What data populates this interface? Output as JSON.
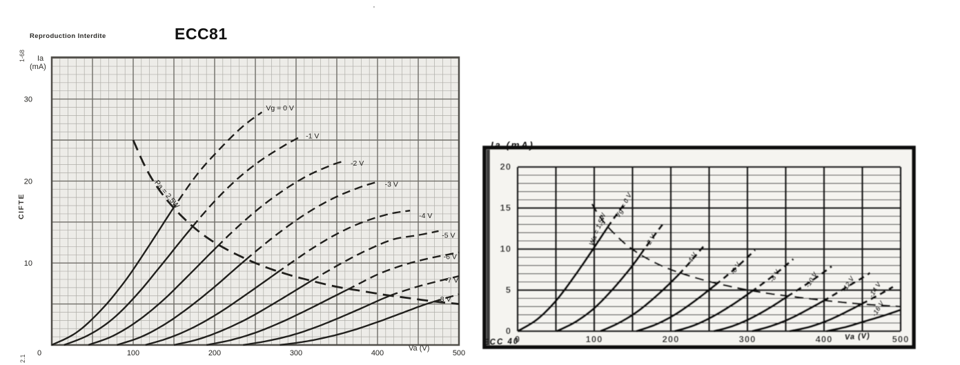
{
  "annotations": {
    "reproduction": "Reproduction Interdite",
    "margin_code_top": "1-68",
    "margin_code_mid": "CIFTE",
    "margin_code_bottom": "2.1",
    "stray_mark": "'"
  },
  "colors": {
    "paper": "#ffffff",
    "left_ink": "#21201d",
    "left_grid_minor": "#aeada7",
    "left_grid_major": "#6f6d67",
    "left_plot_bg": "#edece8",
    "left_border": "#504e49",
    "right_ink": "#0f0f0f",
    "right_plot_bg": "#f5f4f0",
    "right_grid_minor": "#3c3c3c",
    "right_grid_major": "#1c1c1c",
    "right_frame": "#0d0d0d"
  },
  "chart_data": [
    {
      "id": "ecc81",
      "type": "line",
      "title": "ECC81",
      "ylabel": "Ia",
      "ylabel2": "(mA)",
      "xlabel": "Va (V)",
      "xlim": [
        0,
        500
      ],
      "ylim": [
        0,
        35.1
      ],
      "xticks": [
        0,
        100,
        200,
        300,
        400,
        500
      ],
      "yticks": [
        10,
        20,
        30
      ],
      "grid": {
        "minor_x": 10,
        "minor_y": 1,
        "major_x": 50,
        "major_y": 5
      },
      "legend_position": "labels-on-curves",
      "power_curve": {
        "label": "Pa = 2,5W",
        "watts": 2.5,
        "label_at": [
          126,
          19.8
        ],
        "label_rotate": 50,
        "points": [
          [
            100,
            25
          ],
          [
            115,
            21.7
          ],
          [
            130,
            19.2
          ],
          [
            150,
            16.7
          ],
          [
            175,
            14.3
          ],
          [
            200,
            12.5
          ],
          [
            230,
            10.9
          ],
          [
            260,
            9.6
          ],
          [
            290,
            8.6
          ],
          [
            320,
            7.8
          ],
          [
            350,
            7.1
          ],
          [
            380,
            6.6
          ],
          [
            410,
            6.1
          ],
          [
            440,
            5.7
          ],
          [
            470,
            5.3
          ],
          [
            500,
            5
          ]
        ]
      },
      "series": [
        {
          "name": "Vg=0V",
          "label": "Vg = 0 V",
          "label_at": [
            263,
            28.6
          ],
          "label_rotate": 0,
          "points": [
            [
              0,
              0
            ],
            [
              30,
              1.5
            ],
            [
              60,
              4.2
            ],
            [
              90,
              7.8
            ],
            [
              120,
              12.2
            ],
            [
              150,
              16.8
            ],
            [
              180,
              21
            ],
            [
              210,
              24.3
            ],
            [
              235,
              26.7
            ],
            [
              258,
              28.4
            ]
          ]
        },
        {
          "name": "Vg=-1V",
          "label": "-1 V",
          "label_at": [
            312,
            25.2
          ],
          "label_rotate": 0,
          "points": [
            [
              15,
              0
            ],
            [
              45,
              1.2
            ],
            [
              75,
              3.2
            ],
            [
              105,
              6.2
            ],
            [
              135,
              9.8
            ],
            [
              165,
              13.5
            ],
            [
              195,
              17
            ],
            [
              225,
              20
            ],
            [
              255,
              22.4
            ],
            [
              285,
              24.3
            ],
            [
              305,
              25.4
            ]
          ]
        },
        {
          "name": "Vg=-2V",
          "label": "-2 V",
          "label_at": [
            367,
            21.9
          ],
          "label_rotate": 0,
          "points": [
            [
              45,
              0
            ],
            [
              75,
              1.1
            ],
            [
              105,
              2.9
            ],
            [
              135,
              5.3
            ],
            [
              165,
              8.2
            ],
            [
              195,
              11.2
            ],
            [
              225,
              14.1
            ],
            [
              255,
              16.7
            ],
            [
              285,
              18.9
            ],
            [
              315,
              20.7
            ],
            [
              345,
              22
            ],
            [
              358,
              22.4
            ]
          ]
        },
        {
          "name": "Vg=-3V",
          "label": "-3 V",
          "label_at": [
            409,
            19.3
          ],
          "label_rotate": 0,
          "points": [
            [
              80,
              0
            ],
            [
              110,
              1
            ],
            [
              140,
              2.6
            ],
            [
              170,
              4.7
            ],
            [
              200,
              7.1
            ],
            [
              230,
              9.7
            ],
            [
              260,
              12.2
            ],
            [
              290,
              14.5
            ],
            [
              320,
              16.5
            ],
            [
              350,
              18.1
            ],
            [
              380,
              19.3
            ],
            [
              400,
              19.9
            ]
          ]
        },
        {
          "name": "Vg=-4V",
          "label": "-4 V",
          "label_at": [
            451,
            15.5
          ],
          "label_rotate": 0,
          "points": [
            [
              115,
              0
            ],
            [
              145,
              0.9
            ],
            [
              175,
              2.2
            ],
            [
              205,
              3.9
            ],
            [
              235,
              5.9
            ],
            [
              265,
              8
            ],
            [
              295,
              10.1
            ],
            [
              325,
              12.1
            ],
            [
              355,
              13.8
            ],
            [
              385,
              15.1
            ],
            [
              415,
              16
            ],
            [
              440,
              16.4
            ]
          ]
        },
        {
          "name": "Vg=-5V",
          "label": "-5 V",
          "label_at": [
            479,
            13.1
          ],
          "label_rotate": 0,
          "points": [
            [
              150,
              0
            ],
            [
              180,
              0.7
            ],
            [
              210,
              1.8
            ],
            [
              240,
              3.2
            ],
            [
              270,
              4.9
            ],
            [
              300,
              6.7
            ],
            [
              330,
              8.5
            ],
            [
              360,
              10.2
            ],
            [
              390,
              11.7
            ],
            [
              420,
              12.9
            ],
            [
              450,
              13.4
            ],
            [
              475,
              13.9
            ]
          ]
        },
        {
          "name": "Vg=-6V",
          "label": "-6 V",
          "label_at": [
            481,
            10.5
          ],
          "label_rotate": 0,
          "points": [
            [
              190,
              0
            ],
            [
              220,
              0.6
            ],
            [
              250,
              1.5
            ],
            [
              280,
              2.7
            ],
            [
              310,
              4.1
            ],
            [
              340,
              5.6
            ],
            [
              370,
              7.1
            ],
            [
              400,
              8.6
            ],
            [
              430,
              9.7
            ],
            [
              460,
              10.5
            ],
            [
              490,
              11.1
            ],
            [
              500,
              11.3
            ]
          ]
        },
        {
          "name": "Vg=-7V",
          "label": "-7 V",
          "label_at": [
            483,
            7.6
          ],
          "label_rotate": 0,
          "points": [
            [
              235,
              0
            ],
            [
              265,
              0.5
            ],
            [
              295,
              1.2
            ],
            [
              325,
              2.2
            ],
            [
              355,
              3.4
            ],
            [
              385,
              4.7
            ],
            [
              415,
              6
            ],
            [
              445,
              7
            ],
            [
              475,
              7.8
            ],
            [
              500,
              8.4
            ]
          ]
        },
        {
          "name": "Vg=-8V",
          "label": "-8 V",
          "label_at": [
            474,
            5.3
          ],
          "label_rotate": 0,
          "points": [
            [
              280,
              0
            ],
            [
              310,
              0.4
            ],
            [
              340,
              1
            ],
            [
              370,
              1.8
            ],
            [
              400,
              2.8
            ],
            [
              430,
              3.9
            ],
            [
              460,
              5
            ],
            [
              490,
              5.9
            ],
            [
              500,
              6.2
            ]
          ]
        }
      ]
    },
    {
      "id": "ecc40",
      "type": "line",
      "title": "ECC 40",
      "footer": "ECC 40",
      "ylabel": "Ia (mA)",
      "xlabel": "Va (V)",
      "xlim": [
        0,
        500
      ],
      "ylim": [
        0,
        20
      ],
      "xticks": [
        0,
        100,
        200,
        300,
        400,
        500
      ],
      "yticks": [
        0,
        5,
        10,
        15,
        20
      ],
      "grid": {
        "minor_y": 1,
        "major_x": 50,
        "major_y": 5
      },
      "legend_position": "labels-on-curves",
      "power_curve": {
        "label": "Wa = 1,5W",
        "watts": 1.5,
        "label_at": [
          107,
          12.3
        ],
        "label_rotate": -68,
        "points": [
          [
            97,
            15.5
          ],
          [
            110,
            13.6
          ],
          [
            125,
            12
          ],
          [
            145,
            10.3
          ],
          [
            170,
            8.8
          ],
          [
            200,
            7.5
          ],
          [
            240,
            6.3
          ],
          [
            280,
            5.4
          ],
          [
            320,
            4.7
          ],
          [
            360,
            4.2
          ],
          [
            400,
            3.75
          ],
          [
            450,
            3.3
          ],
          [
            500,
            3
          ]
        ]
      },
      "series": [
        {
          "name": "Vg=0V",
          "label": "Vg = 0 V",
          "label_at": [
            141,
            15.2
          ],
          "label_rotate": -62,
          "points": [
            [
              0,
              0
            ],
            [
              25,
              1.4
            ],
            [
              50,
              3.7
            ],
            [
              75,
              6.8
            ],
            [
              100,
              10.2
            ],
            [
              120,
              13
            ],
            [
              140,
              15.6
            ]
          ]
        },
        {
          "name": "Vg=-2V",
          "label": "-2 V",
          "label_at": [
            176,
            10.9
          ],
          "label_rotate": -58,
          "points": [
            [
              51,
              0
            ],
            [
              75,
              1.1
            ],
            [
              100,
              2.8
            ],
            [
              125,
              5.2
            ],
            [
              150,
              8
            ],
            [
              170,
              10.6
            ],
            [
              190,
              13.1
            ]
          ]
        },
        {
          "name": "Vg=-4V",
          "label": "-4 V",
          "label_at": [
            230,
            8.7
          ],
          "label_rotate": -58,
          "points": [
            [
              108,
              0
            ],
            [
              130,
              0.9
            ],
            [
              155,
              2.3
            ],
            [
              180,
              4.2
            ],
            [
              205,
              6.4
            ],
            [
              225,
              8.4
            ],
            [
              245,
              10.6
            ]
          ]
        },
        {
          "name": "Vg=-6V",
          "label": "-6 V",
          "label_at": [
            287,
            7.5
          ],
          "label_rotate": -58,
          "points": [
            [
              155,
              0
            ],
            [
              180,
              0.8
            ],
            [
              205,
              2
            ],
            [
              230,
              3.6
            ],
            [
              255,
              5.4
            ],
            [
              280,
              7.3
            ],
            [
              300,
              9
            ],
            [
              310,
              9.9
            ]
          ]
        },
        {
          "name": "Vg=-8V",
          "label": "-8 V",
          "label_at": [
            338,
            6.6
          ],
          "label_rotate": -58,
          "points": [
            [
              205,
              0
            ],
            [
              230,
              0.7
            ],
            [
              255,
              1.8
            ],
            [
              280,
              3.2
            ],
            [
              305,
              4.8
            ],
            [
              330,
              6.5
            ],
            [
              350,
              8
            ],
            [
              360,
              8.8
            ]
          ]
        },
        {
          "name": "Vg=-10V",
          "label": "-10 V",
          "label_at": [
            386,
            6.1
          ],
          "label_rotate": -58,
          "points": [
            [
              256,
              0
            ],
            [
              280,
              0.6
            ],
            [
              305,
              1.6
            ],
            [
              330,
              2.9
            ],
            [
              355,
              4.4
            ],
            [
              380,
              5.9
            ],
            [
              400,
              7.2
            ],
            [
              410,
              7.9
            ]
          ]
        },
        {
          "name": "Vg=-12V",
          "label": "-12 V",
          "label_at": [
            434,
            5.6
          ],
          "label_rotate": -58,
          "points": [
            [
              306,
              0
            ],
            [
              330,
              0.6
            ],
            [
              355,
              1.5
            ],
            [
              380,
              2.7
            ],
            [
              405,
              4
            ],
            [
              430,
              5.4
            ],
            [
              450,
              6.5
            ],
            [
              460,
              7.1
            ]
          ]
        },
        {
          "name": "Vg=-14V",
          "label": "-14 V",
          "label_at": [
            469,
            4.9
          ],
          "label_rotate": -58,
          "points": [
            [
              355,
              0
            ],
            [
              380,
              0.5
            ],
            [
              405,
              1.3
            ],
            [
              430,
              2.4
            ],
            [
              455,
              3.6
            ],
            [
              475,
              4.6
            ],
            [
              490,
              5.4
            ]
          ]
        },
        {
          "name": "Vg=-16V",
          "label": "-16 V",
          "label_at": [
            473,
            2.6
          ],
          "label_rotate": -58,
          "points": [
            [
              403,
              0
            ],
            [
              428,
              0.5
            ],
            [
              453,
              1.2
            ],
            [
              478,
              1.9
            ],
            [
              500,
              2.6
            ]
          ]
        }
      ]
    }
  ]
}
